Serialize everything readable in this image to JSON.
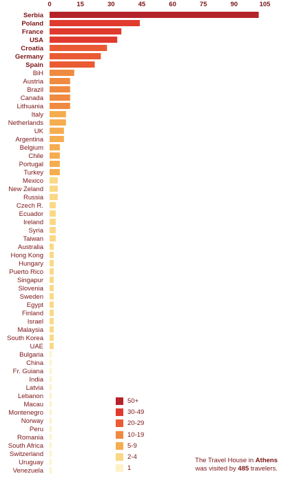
{
  "chart_data": {
    "type": "bar",
    "orientation": "horizontal",
    "x_ticks": [
      0,
      15,
      30,
      45,
      60,
      75,
      90,
      105
    ],
    "xlim": [
      0,
      105
    ],
    "grid": false,
    "legend_position": "bottom-center",
    "categories": [
      "Serbia",
      "Poland",
      "France",
      "USA",
      "Croatia",
      "Germany",
      "Spain",
      "BiH",
      "Austria",
      "Brazil",
      "Canada",
      "Lithuania",
      "Italy",
      "Netherlands",
      "UK",
      "Argentina",
      "Belgium",
      "Chile",
      "Portugal",
      "Turkey",
      "Mexico",
      "New Zeland",
      "Russia",
      "Czech R.",
      "Ecuador",
      "Ireland",
      "Syria",
      "Taiwan",
      "Australia",
      "Hong Kong",
      "Hungary",
      "Puerto Rico",
      "Singapur",
      "Slovenia",
      "Sweden",
      "Egypt",
      "Finland",
      "Israel",
      "Malaysia",
      "South Korea",
      "UAE",
      "Bulgaria",
      "China",
      "Fr. Guiana",
      "India",
      "Latvia",
      "Lebanon",
      "Macau",
      "Montenegro",
      "Norway",
      "Peru",
      "Romania",
      "South Africa",
      "Switzerland",
      "Uruguay",
      "Venezuela"
    ],
    "values": [
      102,
      44,
      35,
      33,
      28,
      25,
      22,
      12,
      10,
      10,
      10,
      10,
      8,
      8,
      7,
      7,
      5,
      5,
      5,
      5,
      4,
      4,
      4,
      3,
      3,
      3,
      3,
      3,
      2,
      2,
      2,
      2,
      2,
      2,
      2,
      2,
      2,
      2,
      2,
      2,
      2,
      1,
      1,
      1,
      1,
      1,
      1,
      1,
      1,
      1,
      1,
      1,
      1,
      1,
      1,
      1
    ],
    "bold_categories": [
      "Serbia",
      "Poland",
      "France",
      "USA",
      "Croatia",
      "Germany",
      "Spain"
    ],
    "legend": [
      {
        "label": "50+",
        "min": 50,
        "color": "#b5242a"
      },
      {
        "label": "30-49",
        "min": 30,
        "color": "#e03a2e"
      },
      {
        "label": "20-29",
        "min": 20,
        "color": "#ea5b34"
      },
      {
        "label": "10-19",
        "min": 10,
        "color": "#f08a40"
      },
      {
        "label": "5-9",
        "min": 5,
        "color": "#f5ad4f"
      },
      {
        "label": "2-4",
        "min": 2,
        "color": "#fbd886"
      },
      {
        "label": "1",
        "min": 1,
        "color": "#fdf1c8"
      }
    ]
  },
  "note": {
    "line1_prefix": "The Travel House in ",
    "city": "Athens",
    "line2_prefix": "was visited by ",
    "count": "485",
    "line2_suffix": " travelers."
  }
}
